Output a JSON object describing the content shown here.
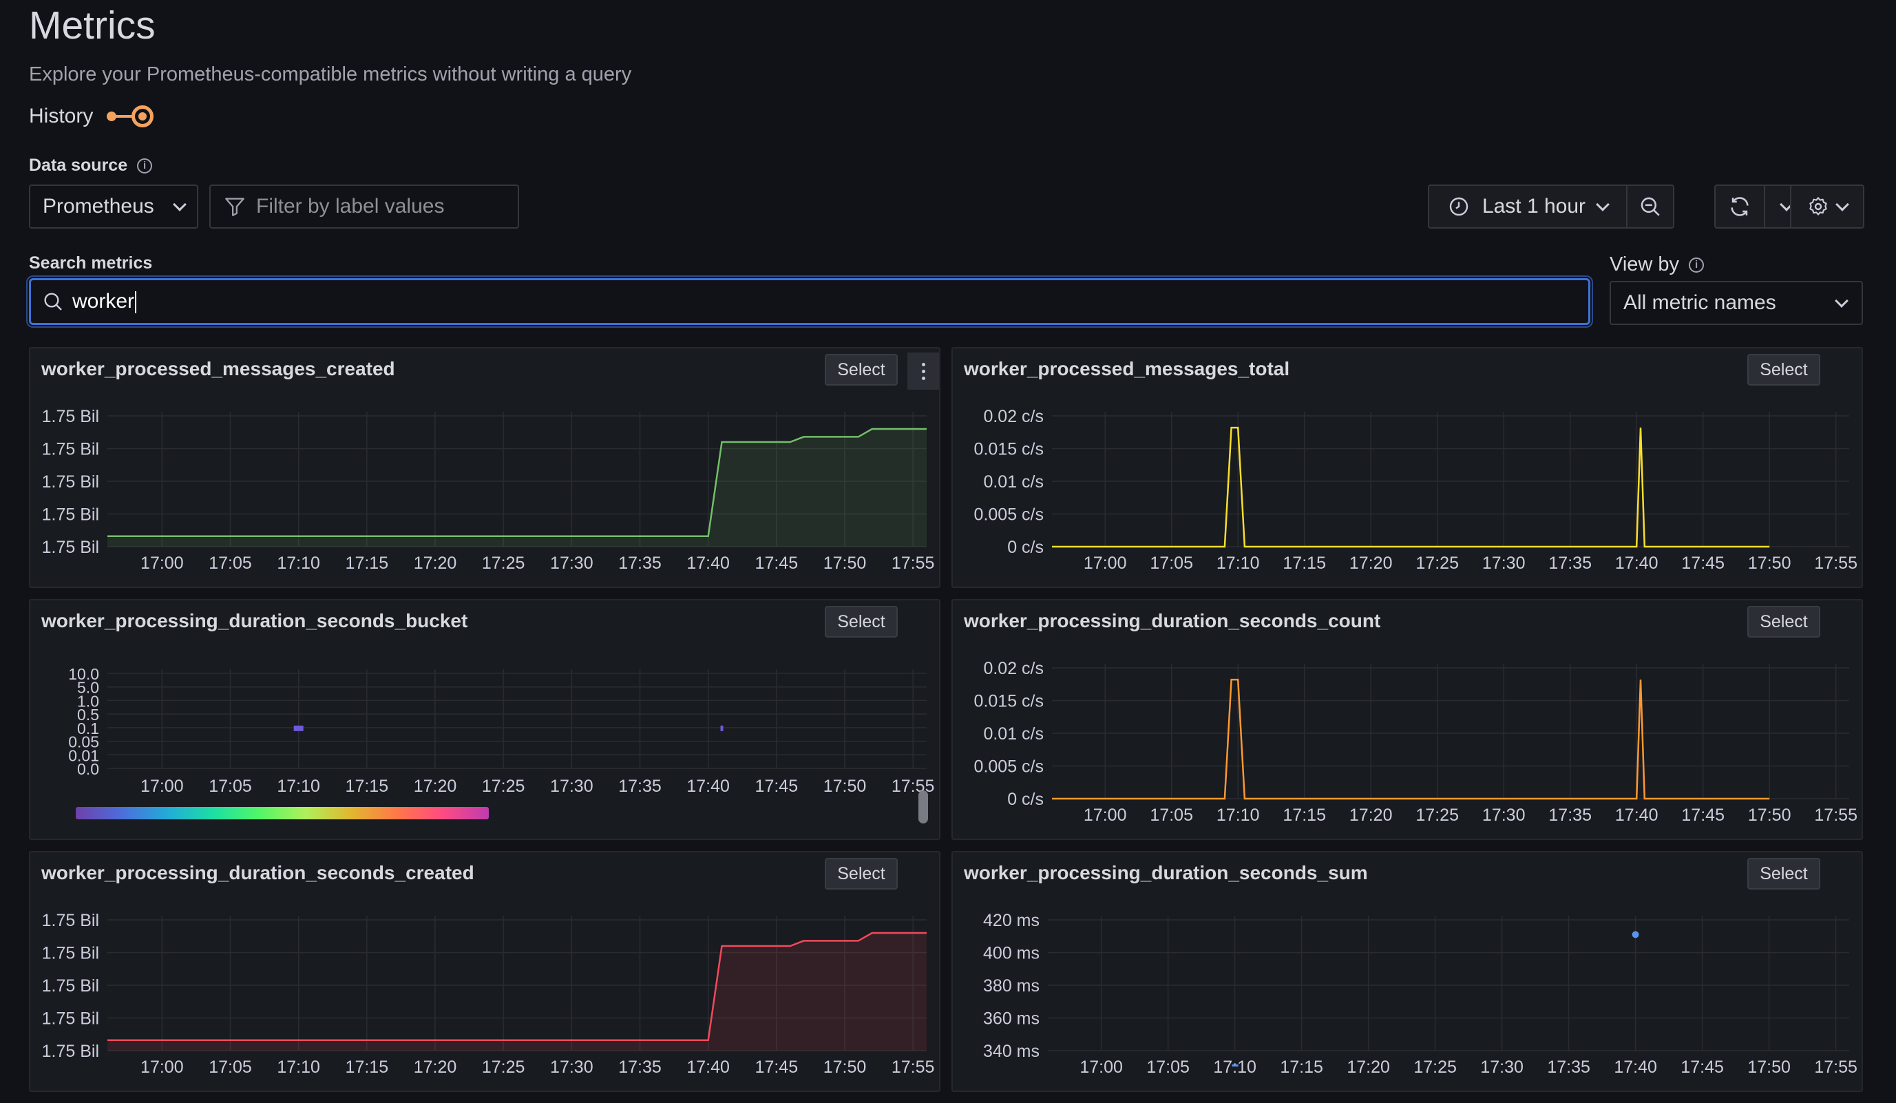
{
  "header": {
    "title": "Metrics",
    "subtitle": "Explore your Prometheus-compatible metrics without writing a query",
    "history_label": "History"
  },
  "datasource": {
    "label": "Data source",
    "selected": "Prometheus",
    "filter_placeholder": "Filter by label values"
  },
  "time_controls": {
    "range_label": "Last 1 hour"
  },
  "search": {
    "label": "Search metrics",
    "value": "worker"
  },
  "view_by": {
    "label": "View by",
    "selected": "All metric names"
  },
  "colors": {
    "accent": "#3d71d9",
    "green": "#73bf69",
    "yellow": "#fade2a",
    "orange": "#ff9830",
    "red": "#f2495c",
    "blue": "#5794f2"
  },
  "panels": [
    {
      "name": "worker_processed_messages_created",
      "select_label": "Select"
    },
    {
      "name": "worker_processed_messages_total",
      "select_label": "Select"
    },
    {
      "name": "worker_processing_duration_seconds_bucket",
      "select_label": "Select"
    },
    {
      "name": "worker_processing_duration_seconds_count",
      "select_label": "Select"
    },
    {
      "name": "worker_processing_duration_seconds_created",
      "select_label": "Select"
    },
    {
      "name": "worker_processing_duration_seconds_sum",
      "select_label": "Select"
    }
  ],
  "chart_data": [
    {
      "type": "area",
      "title": "worker_processed_messages_created",
      "x": [
        "16:56",
        "17:40",
        "17:41",
        "17:46",
        "17:47",
        "17:51",
        "17:52",
        "17:56"
      ],
      "y_ticks": [
        "1.75 Bil",
        "1.75 Bil",
        "1.75 Bil",
        "1.75 Bil",
        "1.75 Bil"
      ],
      "x_ticks": [
        "17:00",
        "17:05",
        "17:10",
        "17:15",
        "17:20",
        "17:25",
        "17:30",
        "17:35",
        "17:40",
        "17:45",
        "17:50",
        "17:55"
      ],
      "series": [
        {
          "values": [
            0.08,
            0.08,
            0.8,
            0.8,
            0.84,
            0.84,
            0.9,
            0.9
          ],
          "color": "#73bf69"
        }
      ]
    },
    {
      "type": "line",
      "title": "worker_processed_messages_total",
      "y_ticks": [
        "0 c/s",
        "0.005 c/s",
        "0.01 c/s",
        "0.015 c/s",
        "0.02 c/s"
      ],
      "x_ticks": [
        "17:00",
        "17:05",
        "17:10",
        "17:15",
        "17:20",
        "17:25",
        "17:30",
        "17:35",
        "17:40",
        "17:45",
        "17:50",
        "17:55"
      ],
      "x": [
        "16:56",
        "17:09",
        "17:09.5",
        "17:10",
        "17:10.5",
        "17:40",
        "17:40.3",
        "17:40.6",
        "17:50",
        "17:50.5",
        "17:56"
      ],
      "series": [
        {
          "values": [
            0,
            0,
            0.0182,
            0.0182,
            0,
            0,
            0.0182,
            0,
            0,
            null,
            0
          ],
          "color": "#fade2a"
        }
      ]
    },
    {
      "type": "heatmap",
      "title": "worker_processing_duration_seconds_bucket",
      "y_ticks": [
        "0.0",
        "0.01",
        "0.05",
        "0.1",
        "0.5",
        "1.0",
        "5.0",
        "10.0"
      ],
      "x_ticks": [
        "17:00",
        "17:05",
        "17:10",
        "17:15",
        "17:20",
        "17:25",
        "17:30",
        "17:35",
        "17:40",
        "17:45",
        "17:50",
        "17:55"
      ],
      "cells": [
        {
          "x": "17:10",
          "y": "0.1"
        },
        {
          "x": "17:41",
          "y": "0.1"
        }
      ]
    },
    {
      "type": "line",
      "title": "worker_processing_duration_seconds_count",
      "y_ticks": [
        "0 c/s",
        "0.005 c/s",
        "0.01 c/s",
        "0.015 c/s",
        "0.02 c/s"
      ],
      "x_ticks": [
        "17:00",
        "17:05",
        "17:10",
        "17:15",
        "17:20",
        "17:25",
        "17:30",
        "17:35",
        "17:40",
        "17:45",
        "17:50",
        "17:55"
      ],
      "x": [
        "16:56",
        "17:09",
        "17:09.5",
        "17:10",
        "17:10.5",
        "17:40",
        "17:40.3",
        "17:40.6",
        "17:50",
        "17:50.5",
        "17:56"
      ],
      "series": [
        {
          "values": [
            0,
            0,
            0.0182,
            0.0182,
            0,
            0,
            0.0182,
            0,
            0,
            null,
            0
          ],
          "color": "#ff9830"
        }
      ]
    },
    {
      "type": "area",
      "title": "worker_processing_duration_seconds_created",
      "y_ticks": [
        "1.75 Bil",
        "1.75 Bil",
        "1.75 Bil",
        "1.75 Bil",
        "1.75 Bil"
      ],
      "x_ticks": [
        "17:00",
        "17:05",
        "17:10",
        "17:15",
        "17:20",
        "17:25",
        "17:30",
        "17:35",
        "17:40",
        "17:45",
        "17:50",
        "17:55"
      ],
      "x": [
        "16:56",
        "17:40",
        "17:41",
        "17:46",
        "17:47",
        "17:51",
        "17:52",
        "17:56"
      ],
      "series": [
        {
          "values": [
            0.08,
            0.08,
            0.8,
            0.8,
            0.84,
            0.84,
            0.9,
            0.9
          ],
          "color": "#f2495c"
        }
      ]
    },
    {
      "type": "scatter",
      "title": "worker_processing_duration_seconds_sum",
      "y_ticks": [
        "340 ms",
        "360 ms",
        "380 ms",
        "400 ms",
        "420 ms"
      ],
      "x_ticks": [
        "17:00",
        "17:05",
        "17:10",
        "17:15",
        "17:20",
        "17:25",
        "17:30",
        "17:35",
        "17:40",
        "17:45",
        "17:50",
        "17:55"
      ],
      "points": [
        {
          "x": "17:10",
          "y": 330
        },
        {
          "x": "17:40",
          "y": 411
        }
      ],
      "color": "#5794f2"
    }
  ]
}
